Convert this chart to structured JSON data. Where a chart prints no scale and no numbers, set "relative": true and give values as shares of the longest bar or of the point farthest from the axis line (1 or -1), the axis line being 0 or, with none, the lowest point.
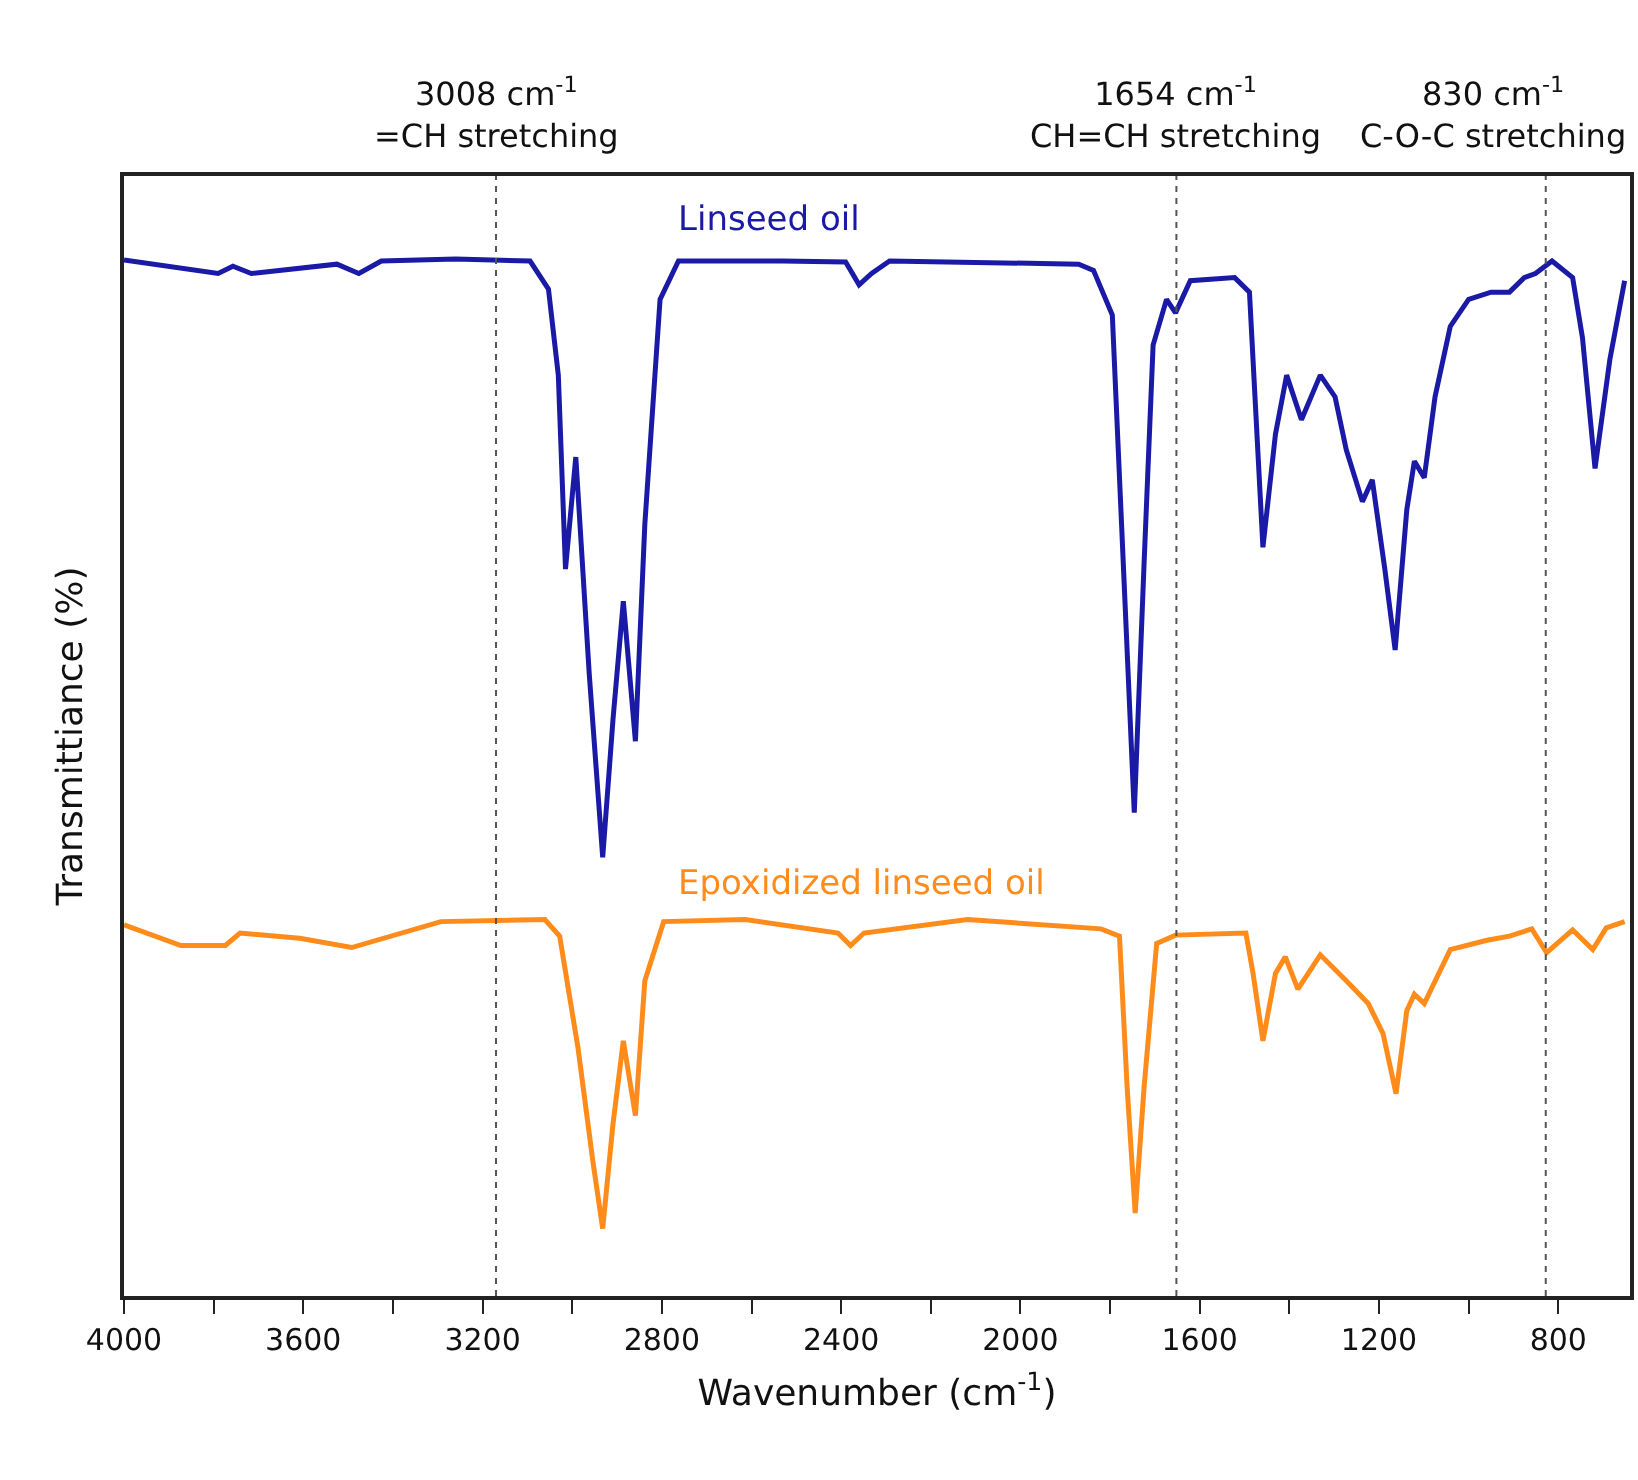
{
  "chart_data": {
    "type": "line",
    "xlabel": "Wavenumber (cm$^{-1}$)",
    "ylabel": "Transmittiance (%)",
    "relative": true,
    "legend": false,
    "grid": false,
    "line_style": "solid",
    "marker": "none",
    "xlim": [
      4000,
      640
    ],
    "xticks": [
      4000,
      {
        "value": 3800,
        "label": null
      },
      3600,
      {
        "value": 3400,
        "label": null
      },
      3200,
      {
        "value": 3000,
        "label": null
      },
      2800,
      {
        "value": 2600,
        "label": null
      },
      2400,
      {
        "value": 2200,
        "label": null
      },
      2000,
      {
        "value": 1800,
        "label": null
      },
      1600,
      {
        "value": 1400,
        "label": null
      },
      1200,
      {
        "value": 1000,
        "label": null
      },
      800
    ],
    "ref_lines": [
      {
        "axis": "x",
        "value": 3170,
        "label": "3008 cm$^{-1}$\n=CH stretching",
        "color": "#555555",
        "line_style": "dotted"
      },
      {
        "axis": "x",
        "value": 1652,
        "label": "1654 cm$^{-1}$\nCH=CH stretching",
        "color": "#555555",
        "line_style": "dotted"
      },
      {
        "axis": "x",
        "value": 828,
        "label": "830 cm$^{-1}$\nC-O-C stretching",
        "color": "#555555",
        "line_style": "dotted"
      }
    ],
    "series": [
      {
        "name": "Linseed oil",
        "color": "#1a1aa6",
        "x": [
          4000,
          3790,
          3757,
          3716,
          3525,
          3476,
          3426,
          3260,
          3094,
          3053,
          3031,
          3015,
          2992,
          2962,
          2932,
          2909,
          2886,
          2859,
          2838,
          2804,
          2763,
          2531,
          2390,
          2360,
          2332,
          2292,
          1870,
          1837,
          1795,
          1767,
          1746,
          1724,
          1704,
          1674,
          1654,
          1621,
          1522,
          1489,
          1459,
          1431,
          1406,
          1373,
          1331,
          1298,
          1273,
          1237,
          1215,
          1187,
          1164,
          1138,
          1121,
          1099,
          1075,
          1041,
          1000,
          950,
          909,
          876,
          851,
          814,
          768,
          746,
          718,
          685,
          652
        ],
        "values": [
          0.999,
          0.986,
          0.993,
          0.986,
          0.995,
          0.986,
          0.998,
          1.0,
          0.998,
          0.971,
          0.888,
          0.701,
          0.809,
          0.6,
          0.423,
          0.556,
          0.67,
          0.535,
          0.744,
          0.961,
          0.998,
          0.998,
          0.997,
          0.975,
          0.986,
          0.998,
          0.995,
          0.989,
          0.946,
          0.672,
          0.466,
          0.708,
          0.917,
          0.961,
          0.948,
          0.979,
          0.982,
          0.968,
          0.722,
          0.831,
          0.888,
          0.845,
          0.888,
          0.867,
          0.816,
          0.766,
          0.787,
          0.701,
          0.623,
          0.758,
          0.805,
          0.789,
          0.867,
          0.935,
          0.961,
          0.968,
          0.968,
          0.982,
          0.986,
          0.998,
          0.982,
          0.924,
          0.798,
          0.903,
          0.979
        ]
      },
      {
        "name": "Epoxidized linseed oil",
        "color": "#ff8c1a",
        "x": [
          4000,
          3873,
          3774,
          3741,
          3608,
          3492,
          3293,
          3061,
          3028,
          2987,
          2954,
          2932,
          2909,
          2886,
          2859,
          2838,
          2796,
          2614,
          2407,
          2379,
          2349,
          2118,
          1820,
          1779,
          1762,
          1744,
          1724,
          1696,
          1654,
          1497,
          1481,
          1459,
          1431,
          1409,
          1381,
          1331,
          1273,
          1224,
          1191,
          1162,
          1138,
          1121,
          1099,
          1041,
          959,
          909,
          859,
          826,
          768,
          723,
          693,
          652
        ],
        "values": [
          0.358,
          0.338,
          0.338,
          0.35,
          0.345,
          0.336,
          0.361,
          0.363,
          0.347,
          0.239,
          0.13,
          0.065,
          0.166,
          0.246,
          0.174,
          0.304,
          0.361,
          0.363,
          0.35,
          0.338,
          0.35,
          0.363,
          0.354,
          0.347,
          0.202,
          0.08,
          0.202,
          0.34,
          0.348,
          0.35,
          0.311,
          0.246,
          0.311,
          0.327,
          0.296,
          0.329,
          0.304,
          0.282,
          0.253,
          0.195,
          0.275,
          0.291,
          0.282,
          0.334,
          0.343,
          0.347,
          0.354,
          0.331,
          0.353,
          0.334,
          0.355,
          0.361
        ]
      }
    ]
  }
}
